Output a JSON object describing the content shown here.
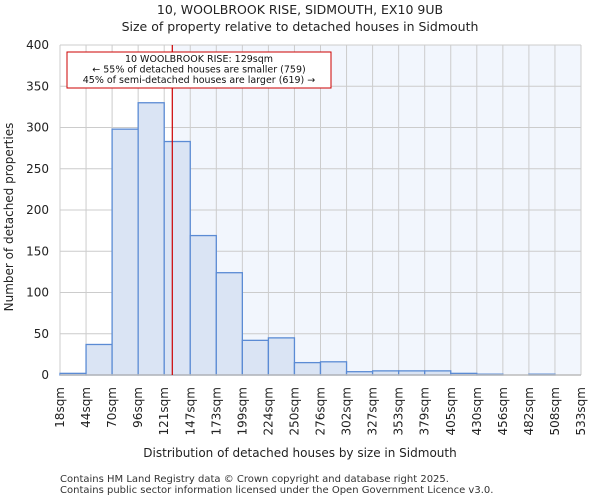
{
  "chart_data": {
    "type": "bar",
    "title": "10, WOOLBROOK RISE, SIDMOUTH, EX10 9UB",
    "subtitle": "Size of property relative to detached houses in Sidmouth",
    "xlabel": "Distribution of detached houses by size in Sidmouth",
    "ylabel": "Number of detached properties",
    "ylim": [
      0,
      400
    ],
    "yticks": [
      0,
      50,
      100,
      150,
      200,
      250,
      300,
      350,
      400
    ],
    "bin_edges": [
      18,
      44,
      70,
      96,
      121,
      147,
      173,
      199,
      224,
      250,
      276,
      302,
      327,
      353,
      379,
      405,
      430,
      456,
      482,
      508,
      533
    ],
    "tick_labels": [
      "18sqm",
      "44sqm",
      "70sqm",
      "96sqm",
      "121sqm",
      "147sqm",
      "173sqm",
      "199sqm",
      "224sqm",
      "250sqm",
      "276sqm",
      "302sqm",
      "327sqm",
      "353sqm",
      "379sqm",
      "405sqm",
      "430sqm",
      "456sqm",
      "482sqm",
      "508sqm",
      "533sqm"
    ],
    "values": [
      2,
      37,
      298,
      330,
      283,
      169,
      124,
      42,
      45,
      15,
      16,
      4,
      5,
      5,
      5,
      2,
      1,
      0,
      1,
      0
    ],
    "marker_value": 129,
    "annotation": [
      "10 WOOLBROOK RISE: 129sqm",
      "← 55% of detached houses are smaller (759)",
      "45% of semi-detached houses are larger (619) →"
    ],
    "grid": true,
    "colors": {
      "bar": "#dae4f4",
      "edge": "#5b8bd4",
      "marker": "#cc0000",
      "highlight_bg": "#f2f6fd"
    }
  },
  "footer": [
    "Contains HM Land Registry data © Crown copyright and database right 2025.",
    "Contains public sector information licensed under the Open Government Licence v3.0."
  ]
}
